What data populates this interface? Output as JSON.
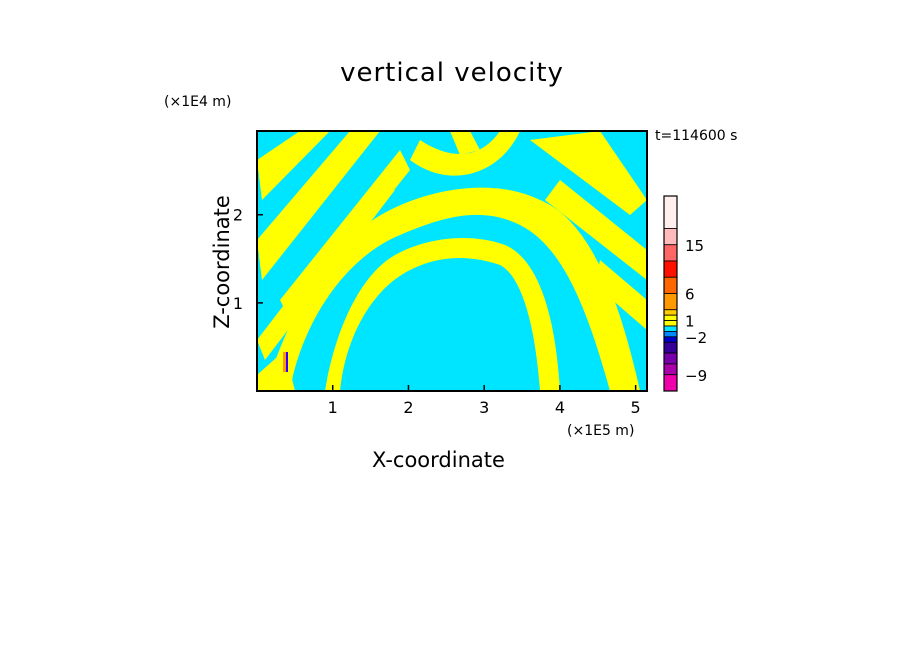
{
  "chart_data": {
    "type": "heatmap",
    "title": "vertical velocity",
    "xlabel": "X-coordinate",
    "ylabel": "Z-coordinate",
    "x_scale_label": "(×1E5 m)",
    "y_scale_label": "(×1E4 m)",
    "time_label": "t=114600 s",
    "xlim": [
      0,
      5.15
    ],
    "ylim": [
      0,
      2.95
    ],
    "x_ticks": [
      1,
      2,
      3,
      4,
      5
    ],
    "y_ticks": [
      1,
      2
    ],
    "field_colors": {
      "positive_weak": "#ffff00",
      "negative_weak": "#00e5ff",
      "strong_updraft": "#ff9900",
      "strong_downdraft": "#3300ff"
    },
    "colorbar": {
      "labels": [
        {
          "value": 15,
          "text": "15"
        },
        {
          "value": 6,
          "text": "6"
        },
        {
          "value": 1,
          "text": "1"
        },
        {
          "value": -2,
          "text": "−2"
        },
        {
          "value": -9,
          "text": "−9"
        }
      ],
      "bands": [
        {
          "from": 18,
          "to": 24,
          "color": "#ffeeee"
        },
        {
          "from": 15,
          "to": 18,
          "color": "#ffbbbb"
        },
        {
          "from": 12,
          "to": 15,
          "color": "#ff6666"
        },
        {
          "from": 9,
          "to": 12,
          "color": "#ff1100"
        },
        {
          "from": 6,
          "to": 9,
          "color": "#ff6600"
        },
        {
          "from": 3,
          "to": 6,
          "color": "#ff9900"
        },
        {
          "from": 2,
          "to": 3,
          "color": "#ffcc00"
        },
        {
          "from": 1,
          "to": 2,
          "color": "#ffff00"
        },
        {
          "from": 0,
          "to": 1,
          "color": "#ffff00"
        },
        {
          "from": -1,
          "to": 0,
          "color": "#00e5ff"
        },
        {
          "from": -2,
          "to": -1,
          "color": "#0088ff"
        },
        {
          "from": -3,
          "to": -2,
          "color": "#0000cc"
        },
        {
          "from": -5,
          "to": -3,
          "color": "#330099"
        },
        {
          "from": -7,
          "to": -5,
          "color": "#7700aa"
        },
        {
          "from": -9,
          "to": -7,
          "color": "#aa00aa"
        },
        {
          "from": -12,
          "to": -9,
          "color": "#ee00aa"
        }
      ]
    }
  }
}
